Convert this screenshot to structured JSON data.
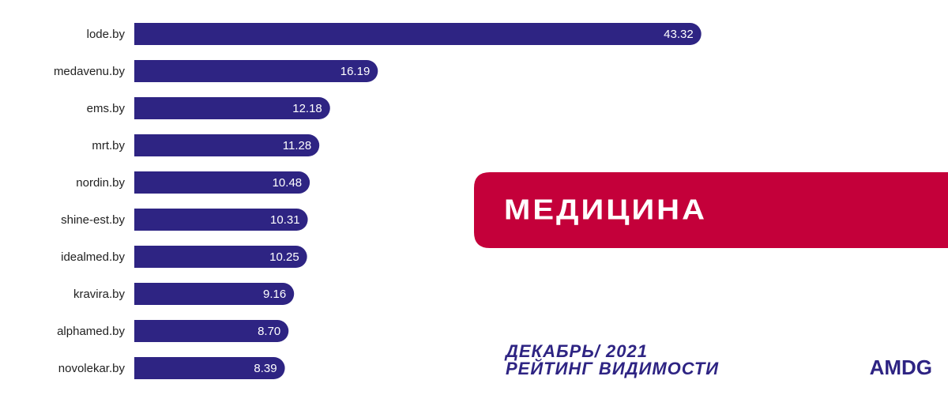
{
  "chart_data": {
    "type": "hbar",
    "title": "МЕДИЦИНА",
    "categories": [
      "lode.by",
      "medavenu.by",
      "ems.by",
      "mrt.by",
      "nordin.by",
      "shine-est.by",
      "idealmed.by",
      "kravira.by",
      "alphamed.by",
      "novolekar.by"
    ],
    "values": [
      43.32,
      16.19,
      12.18,
      11.28,
      10.48,
      10.31,
      10.25,
      9.16,
      8.7,
      8.39
    ],
    "value_labels": [
      "43.32",
      "16.19",
      "12.18",
      "11.28",
      "10.48",
      "10.31",
      "10.25",
      "9.16",
      "8.70",
      "8.39"
    ],
    "color": "#2e2483",
    "annotations": [
      "ДЕКАБРЬ/ 2021",
      "РЕЙТИНГ ВИДИМОСТИ",
      "AMDG"
    ]
  }
}
